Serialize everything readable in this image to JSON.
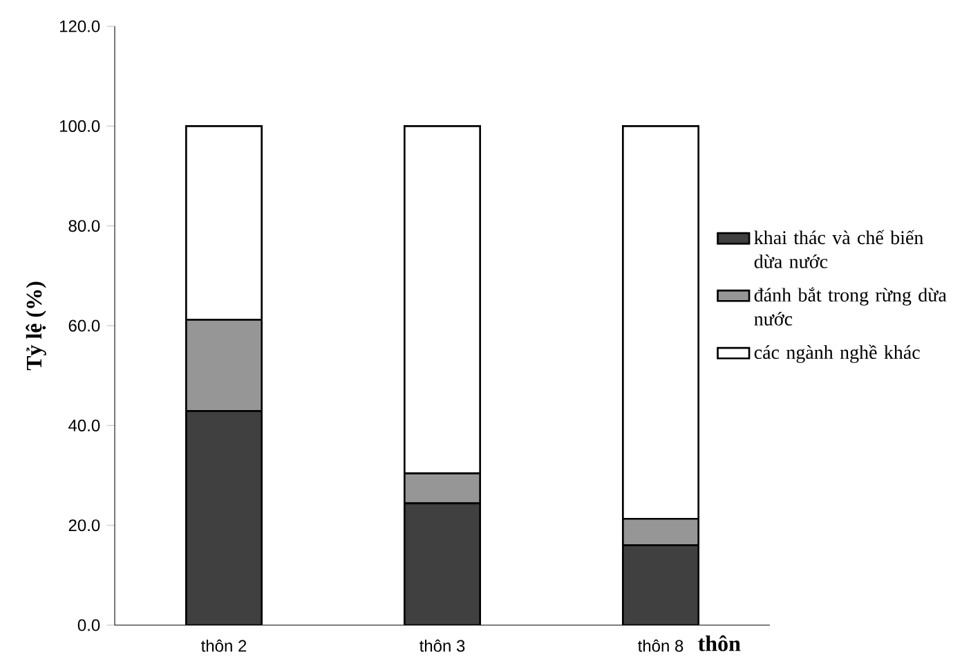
{
  "chart_data": {
    "type": "bar",
    "stacked": true,
    "xlabel": "thôn",
    "ylabel": "Tỷ lệ (%)",
    "categories": [
      "thôn 2",
      "thôn 3",
      "thôn 8"
    ],
    "series": [
      {
        "name": "khai thác và chế biến dừa nước",
        "color": "#404040",
        "values": [
          42.9,
          24.4,
          16.0
        ]
      },
      {
        "name": "đánh bắt trong rừng dừa nước",
        "color": "#969696",
        "values": [
          18.3,
          6.0,
          5.3
        ]
      },
      {
        "name": "các ngành nghề khác",
        "color": "#ffffff",
        "values": [
          38.8,
          69.6,
          78.7
        ]
      }
    ],
    "ylim": [
      0,
      120
    ],
    "yticks": [
      {
        "value": 0,
        "label": "0.0"
      },
      {
        "value": 20,
        "label": "20.0"
      },
      {
        "value": 40,
        "label": "40.0"
      },
      {
        "value": 60,
        "label": "60.0"
      },
      {
        "value": 80,
        "label": "80.0"
      },
      {
        "value": 100,
        "label": "100.0"
      },
      {
        "value": 120,
        "label": "120.0"
      }
    ],
    "grid": false,
    "legend": "right"
  }
}
